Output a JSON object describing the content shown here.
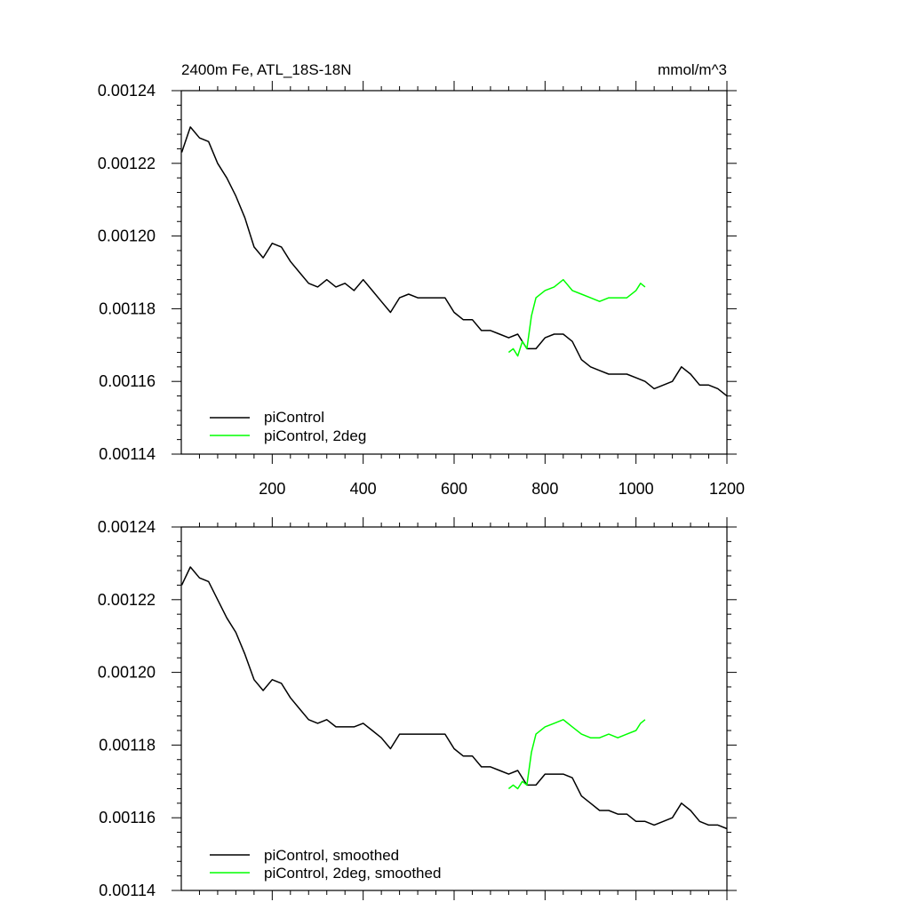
{
  "chart_data": [
    {
      "type": "line",
      "title": "2400m Fe, ATL_18S-18N",
      "units": "mmol/m^3",
      "xlim": [
        0,
        1200
      ],
      "ylim": [
        0.00114,
        0.00124
      ],
      "x_ticks": [
        200,
        400,
        600,
        800,
        1000,
        1200
      ],
      "y_ticks": [
        "0.00114",
        "0.00116",
        "0.00118",
        "0.00120",
        "0.00122",
        "0.00124"
      ],
      "legend_position": "bottom-left",
      "grid": false,
      "series": [
        {
          "name": "piControl",
          "color": "#000000",
          "x": [
            1,
            20,
            40,
            60,
            80,
            100,
            120,
            140,
            160,
            180,
            200,
            220,
            240,
            260,
            280,
            300,
            320,
            340,
            360,
            380,
            400,
            420,
            440,
            460,
            480,
            500,
            520,
            540,
            560,
            580,
            600,
            620,
            640,
            660,
            680,
            700,
            720,
            740,
            760,
            780,
            800,
            820,
            840,
            860,
            880,
            900,
            920,
            940,
            960,
            980,
            1000,
            1020,
            1040,
            1060,
            1080,
            1100,
            1120,
            1140,
            1160,
            1180,
            1200
          ],
          "values": [
            0.001223,
            0.00123,
            0.001227,
            0.001226,
            0.00122,
            0.001216,
            0.001211,
            0.001205,
            0.001197,
            0.001194,
            0.001198,
            0.001197,
            0.001193,
            0.00119,
            0.001187,
            0.001186,
            0.001188,
            0.001186,
            0.001187,
            0.001185,
            0.001188,
            0.001185,
            0.001182,
            0.001179,
            0.001183,
            0.001184,
            0.001183,
            0.001183,
            0.001183,
            0.001183,
            0.001179,
            0.001177,
            0.001177,
            0.001174,
            0.001174,
            0.001173,
            0.001172,
            0.001173,
            0.001169,
            0.001169,
            0.001172,
            0.001173,
            0.001173,
            0.001171,
            0.001166,
            0.001164,
            0.001163,
            0.001162,
            0.001162,
            0.001162,
            0.001161,
            0.00116,
            0.001158,
            0.001159,
            0.00116,
            0.001164,
            0.001162,
            0.001159,
            0.001159,
            0.001158,
            0.001156
          ]
        },
        {
          "name": "piControl, 2deg",
          "color": "#00ff00",
          "x": [
            720,
            730,
            740,
            750,
            760,
            770,
            780,
            800,
            820,
            840,
            860,
            880,
            900,
            920,
            940,
            960,
            980,
            1000,
            1010,
            1020
          ],
          "values": [
            0.001168,
            0.001169,
            0.001167,
            0.001171,
            0.001169,
            0.001178,
            0.001183,
            0.001185,
            0.001186,
            0.001188,
            0.001185,
            0.001184,
            0.001183,
            0.001182,
            0.001183,
            0.001183,
            0.001183,
            0.001185,
            0.001187,
            0.001186
          ]
        }
      ]
    },
    {
      "type": "line",
      "xlim": [
        0,
        1200
      ],
      "ylim": [
        0.00114,
        0.00124
      ],
      "x_ticks": [
        200,
        400,
        600,
        800,
        1000,
        1200
      ],
      "y_ticks": [
        "0.00114",
        "0.00116",
        "0.00118",
        "0.00120",
        "0.00122",
        "0.00124"
      ],
      "legend_position": "bottom-left",
      "grid": false,
      "series": [
        {
          "name": "piControl, smoothed",
          "color": "#000000",
          "x": [
            1,
            20,
            40,
            60,
            80,
            100,
            120,
            140,
            160,
            180,
            200,
            220,
            240,
            260,
            280,
            300,
            320,
            340,
            360,
            380,
            400,
            420,
            440,
            460,
            480,
            500,
            520,
            540,
            560,
            580,
            600,
            620,
            640,
            660,
            680,
            700,
            720,
            740,
            760,
            780,
            800,
            820,
            840,
            860,
            880,
            900,
            920,
            940,
            960,
            980,
            1000,
            1020,
            1040,
            1060,
            1080,
            1100,
            1120,
            1140,
            1160,
            1180,
            1200
          ],
          "values": [
            0.001224,
            0.001229,
            0.001226,
            0.001225,
            0.00122,
            0.001215,
            0.001211,
            0.001205,
            0.001198,
            0.001195,
            0.001198,
            0.001197,
            0.001193,
            0.00119,
            0.001187,
            0.001186,
            0.001187,
            0.001185,
            0.001185,
            0.001185,
            0.001186,
            0.001184,
            0.001182,
            0.001179,
            0.001183,
            0.001183,
            0.001183,
            0.001183,
            0.001183,
            0.001183,
            0.001179,
            0.001177,
            0.001177,
            0.001174,
            0.001174,
            0.001173,
            0.001172,
            0.001173,
            0.001169,
            0.001169,
            0.001172,
            0.001172,
            0.001172,
            0.001171,
            0.001166,
            0.001164,
            0.001162,
            0.001162,
            0.001161,
            0.001161,
            0.001159,
            0.001159,
            0.001158,
            0.001159,
            0.00116,
            0.001164,
            0.001162,
            0.001159,
            0.001158,
            0.001158,
            0.001157
          ]
        },
        {
          "name": "piControl, 2deg, smoothed",
          "color": "#00ff00",
          "x": [
            720,
            730,
            740,
            750,
            760,
            770,
            780,
            800,
            820,
            840,
            860,
            880,
            900,
            920,
            940,
            960,
            980,
            1000,
            1010,
            1020
          ],
          "values": [
            0.001168,
            0.001169,
            0.001168,
            0.00117,
            0.001169,
            0.001178,
            0.001183,
            0.001185,
            0.001186,
            0.001187,
            0.001185,
            0.001183,
            0.001182,
            0.001182,
            0.001183,
            0.001182,
            0.001183,
            0.001184,
            0.001186,
            0.001187
          ]
        }
      ]
    }
  ]
}
